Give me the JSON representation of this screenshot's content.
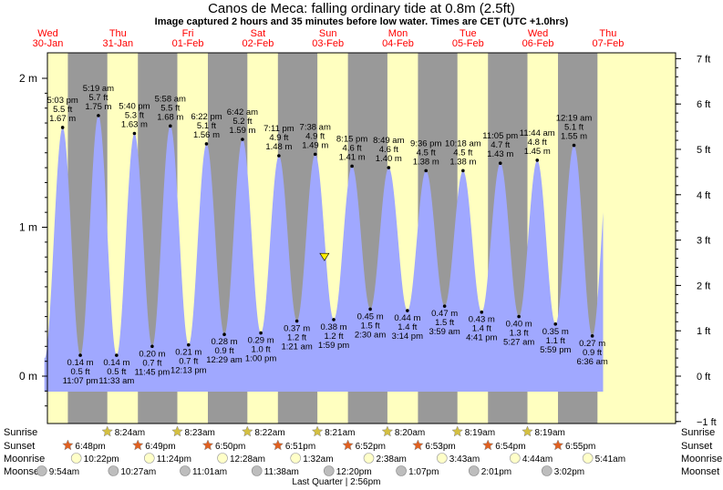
{
  "title": "Canos de Meca: falling  ordinary tide at 0.8m (2.5ft)",
  "subtitle": "Image captured 2 hours and 35 minutes before low water. Times are CET (UTC +1.0hrs)",
  "colors": {
    "day": "#ffffc0",
    "night": "#999999",
    "tide_fill": "#a0a8ff",
    "date_text": "#ff0000",
    "marker": "#ffee00"
  },
  "chart_data": {
    "type": "area",
    "title": "Canos de Meca: falling  ordinary tide at 0.8m (2.5ft)",
    "xlabel": "",
    "ylabel_left": "m",
    "ylabel_right": "ft",
    "ylim_m": [
      -0.3,
      2.1
    ],
    "y_ticks_left": [
      {
        "v": 0,
        "label": "0 m"
      },
      {
        "v": 1,
        "label": "1 m"
      },
      {
        "v": 2,
        "label": "2 m"
      }
    ],
    "y_ticks_right": [
      {
        "v": -1,
        "label": "−1 ft"
      },
      {
        "v": 0,
        "label": "0 ft"
      },
      {
        "v": 1,
        "label": "1 ft"
      },
      {
        "v": 2,
        "label": "2 ft"
      },
      {
        "v": 3,
        "label": "3 ft"
      },
      {
        "v": 4,
        "label": "4 ft"
      },
      {
        "v": 5,
        "label": "5 ft"
      },
      {
        "v": 6,
        "label": "6 ft"
      },
      {
        "v": 7,
        "label": "7 ft"
      }
    ],
    "day_labels": [
      {
        "day": "Wed",
        "date": "30-Jan"
      },
      {
        "day": "Thu",
        "date": "31-Jan"
      },
      {
        "day": "Fri",
        "date": "01-Feb"
      },
      {
        "day": "Sat",
        "date": "02-Feb"
      },
      {
        "day": "Sun",
        "date": "03-Feb"
      },
      {
        "day": "Mon",
        "date": "04-Feb"
      },
      {
        "day": "Tue",
        "date": "05-Feb"
      },
      {
        "day": "Wed",
        "date": "06-Feb"
      },
      {
        "day": "Thu",
        "date": "07-Feb"
      }
    ],
    "extremes": [
      {
        "type": "high",
        "time": "5:03 pm",
        "ft": "5.5 ft",
        "m": 1.67,
        "m_label": "1.67 m",
        "t": 17.05
      },
      {
        "type": "low",
        "time": "11:07 pm",
        "ft": "0.5 ft",
        "m": 0.14,
        "m_label": "0.14 m",
        "t": 23.12
      },
      {
        "type": "high",
        "time": "5:19 am",
        "ft": "5.7 ft",
        "m": 1.75,
        "m_label": "1.75 m",
        "t": 29.32
      },
      {
        "type": "low",
        "time": "11:33 am",
        "ft": "0.5 ft",
        "m": 0.14,
        "m_label": "0.14 m",
        "t": 35.55
      },
      {
        "type": "high",
        "time": "5:40 pm",
        "ft": "5.3 ft",
        "m": 1.63,
        "m_label": "1.63 m",
        "t": 41.67
      },
      {
        "type": "low",
        "time": "11:45 pm",
        "ft": "0.7 ft",
        "m": 0.2,
        "m_label": "0.20 m",
        "t": 47.75
      },
      {
        "type": "high",
        "time": "5:58 am",
        "ft": "5.5 ft",
        "m": 1.68,
        "m_label": "1.68 m",
        "t": 53.97
      },
      {
        "type": "low",
        "time": "12:13 pm",
        "ft": "0.7 ft",
        "m": 0.21,
        "m_label": "0.21 m",
        "t": 60.22
      },
      {
        "type": "high",
        "time": "6:22 pm",
        "ft": "5.1 ft",
        "m": 1.56,
        "m_label": "1.56 m",
        "t": 66.37
      },
      {
        "type": "low",
        "time": "12:29 am",
        "ft": "0.9 ft",
        "m": 0.28,
        "m_label": "0.28 m",
        "t": 72.48
      },
      {
        "type": "high",
        "time": "6:42 am",
        "ft": "5.2 ft",
        "m": 1.59,
        "m_label": "1.59 m",
        "t": 78.7
      },
      {
        "type": "low",
        "time": "1:00 pm",
        "ft": "1.0 ft",
        "m": 0.29,
        "m_label": "0.29 m",
        "t": 85.0
      },
      {
        "type": "high",
        "time": "7:11 pm",
        "ft": "4.9 ft",
        "m": 1.48,
        "m_label": "1.48 m",
        "t": 91.18
      },
      {
        "type": "low",
        "time": "1:21 am",
        "ft": "1.2 ft",
        "m": 0.37,
        "m_label": "0.37 m",
        "t": 97.35
      },
      {
        "type": "high",
        "time": "7:38 am",
        "ft": "4.9 ft",
        "m": 1.49,
        "m_label": "1.49 m",
        "t": 103.63
      },
      {
        "type": "low",
        "time": "1:59 pm",
        "ft": "1.2 ft",
        "m": 0.38,
        "m_label": "0.38 m",
        "t": 109.98
      },
      {
        "type": "high",
        "time": "8:15 pm",
        "ft": "4.6 ft",
        "m": 1.41,
        "m_label": "1.41 m",
        "t": 116.25
      },
      {
        "type": "low",
        "time": "2:30 am",
        "ft": "1.5 ft",
        "m": 0.45,
        "m_label": "0.45 m",
        "t": 122.5
      },
      {
        "type": "high",
        "time": "8:49 am",
        "ft": "4.6 ft",
        "m": 1.4,
        "m_label": "1.40 m",
        "t": 128.82
      },
      {
        "type": "low",
        "time": "3:14 pm",
        "ft": "1.4 ft",
        "m": 0.44,
        "m_label": "0.44 m",
        "t": 135.23
      },
      {
        "type": "high",
        "time": "9:36 pm",
        "ft": "4.5 ft",
        "m": 1.38,
        "m_label": "1.38 m",
        "t": 141.6
      },
      {
        "type": "low",
        "time": "3:59 am",
        "ft": "1.5 ft",
        "m": 0.47,
        "m_label": "0.47 m",
        "t": 147.98
      },
      {
        "type": "high",
        "time": "10:18 am",
        "ft": "4.5 ft",
        "m": 1.38,
        "m_label": "1.38 m",
        "t": 154.3
      },
      {
        "type": "low",
        "time": "4:41 pm",
        "ft": "1.4 ft",
        "m": 0.43,
        "m_label": "0.43 m",
        "t": 160.68
      },
      {
        "type": "high",
        "time": "11:05 pm",
        "ft": "4.7 ft",
        "m": 1.43,
        "m_label": "1.43 m",
        "t": 167.08
      },
      {
        "type": "low",
        "time": "5:27 am",
        "ft": "1.3 ft",
        "m": 0.4,
        "m_label": "0.40 m",
        "t": 173.45
      },
      {
        "type": "high",
        "time": "11:44 am",
        "ft": "4.8 ft",
        "m": 1.45,
        "m_label": "1.45 m",
        "t": 179.73
      },
      {
        "type": "low",
        "time": "5:59 pm",
        "ft": "1.1 ft",
        "m": 0.35,
        "m_label": "0.35 m",
        "t": 185.98
      },
      {
        "type": "high",
        "time": "12:19 am",
        "ft": "5.1 ft",
        "m": 1.55,
        "m_label": "1.55 m",
        "t": 192.32
      },
      {
        "type": "low",
        "time": "6:36 am",
        "ft": "0.9 ft",
        "m": 0.27,
        "m_label": "0.27 m",
        "t": 198.6
      }
    ],
    "current_level_m": 0.8,
    "current_t": 106.8,
    "sunrise": [
      "8:24am",
      "8:23am",
      "8:22am",
      "8:21am",
      "8:20am",
      "8:19am",
      "8:19am"
    ],
    "sunset": [
      "6:48pm",
      "6:49pm",
      "6:50pm",
      "6:51pm",
      "6:52pm",
      "6:53pm",
      "6:54pm",
      "6:55pm"
    ],
    "moonrise": [
      "10:22pm",
      "11:24pm",
      "12:28am",
      "1:32am",
      "2:38am",
      "3:43am",
      "4:44am",
      "5:41am"
    ],
    "moonset": [
      "9:54am",
      "10:27am",
      "11:01am",
      "11:38am",
      "12:20pm",
      "1:07pm",
      "2:01pm",
      "3:02pm"
    ],
    "moon_phase_note": "Last Quarter | 2:56pm",
    "row_labels": {
      "sunrise": "Sunrise",
      "sunset": "Sunset",
      "moonrise": "Moonrise",
      "moonset": "Moonset"
    }
  }
}
